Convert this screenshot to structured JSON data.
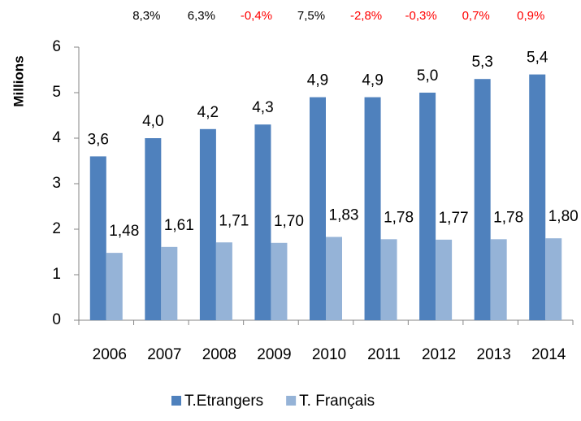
{
  "chart_data": {
    "type": "bar",
    "y_label": "Millions",
    "categories": [
      "2006",
      "2007",
      "2008",
      "2009",
      "2010",
      "2011",
      "2012",
      "2013",
      "2014"
    ],
    "series": [
      {
        "name": "T.Etrangers",
        "color": "#4f81bd",
        "values": [
          3.6,
          4.0,
          4.2,
          4.3,
          4.9,
          4.9,
          5.0,
          5.3,
          5.4
        ],
        "value_labels": [
          "3,6",
          "4,0",
          "4,2",
          "4,3",
          "4,9",
          "4,9",
          "5,0",
          "5,3",
          "5,4"
        ]
      },
      {
        "name": "T. Français",
        "color": "#95b3d7",
        "values": [
          1.48,
          1.61,
          1.71,
          1.7,
          1.83,
          1.78,
          1.77,
          1.78,
          1.8
        ],
        "value_labels": [
          "1,48",
          "1,61",
          "1,71",
          "1,70",
          "1,83",
          "1,78",
          "1,77",
          "1,78",
          "1,80"
        ]
      }
    ],
    "annotations": [
      {
        "text": "8,3%",
        "color": "#000000"
      },
      {
        "text": "6,3%",
        "color": "#000000"
      },
      {
        "text": "-0,4%",
        "color": "#ff0000"
      },
      {
        "text": "7,5%",
        "color": "#000000"
      },
      {
        "text": "-2,8%",
        "color": "#ff0000"
      },
      {
        "text": "-0,3%",
        "color": "#ff0000"
      },
      {
        "text": "0,7%",
        "color": "#ff0000"
      },
      {
        "text": "0,9%",
        "color": "#ff0000"
      }
    ],
    "ylim": [
      0,
      6
    ],
    "yticks": [
      0,
      1,
      2,
      3,
      4,
      5,
      6
    ],
    "grid": false,
    "legend": "bottom"
  }
}
